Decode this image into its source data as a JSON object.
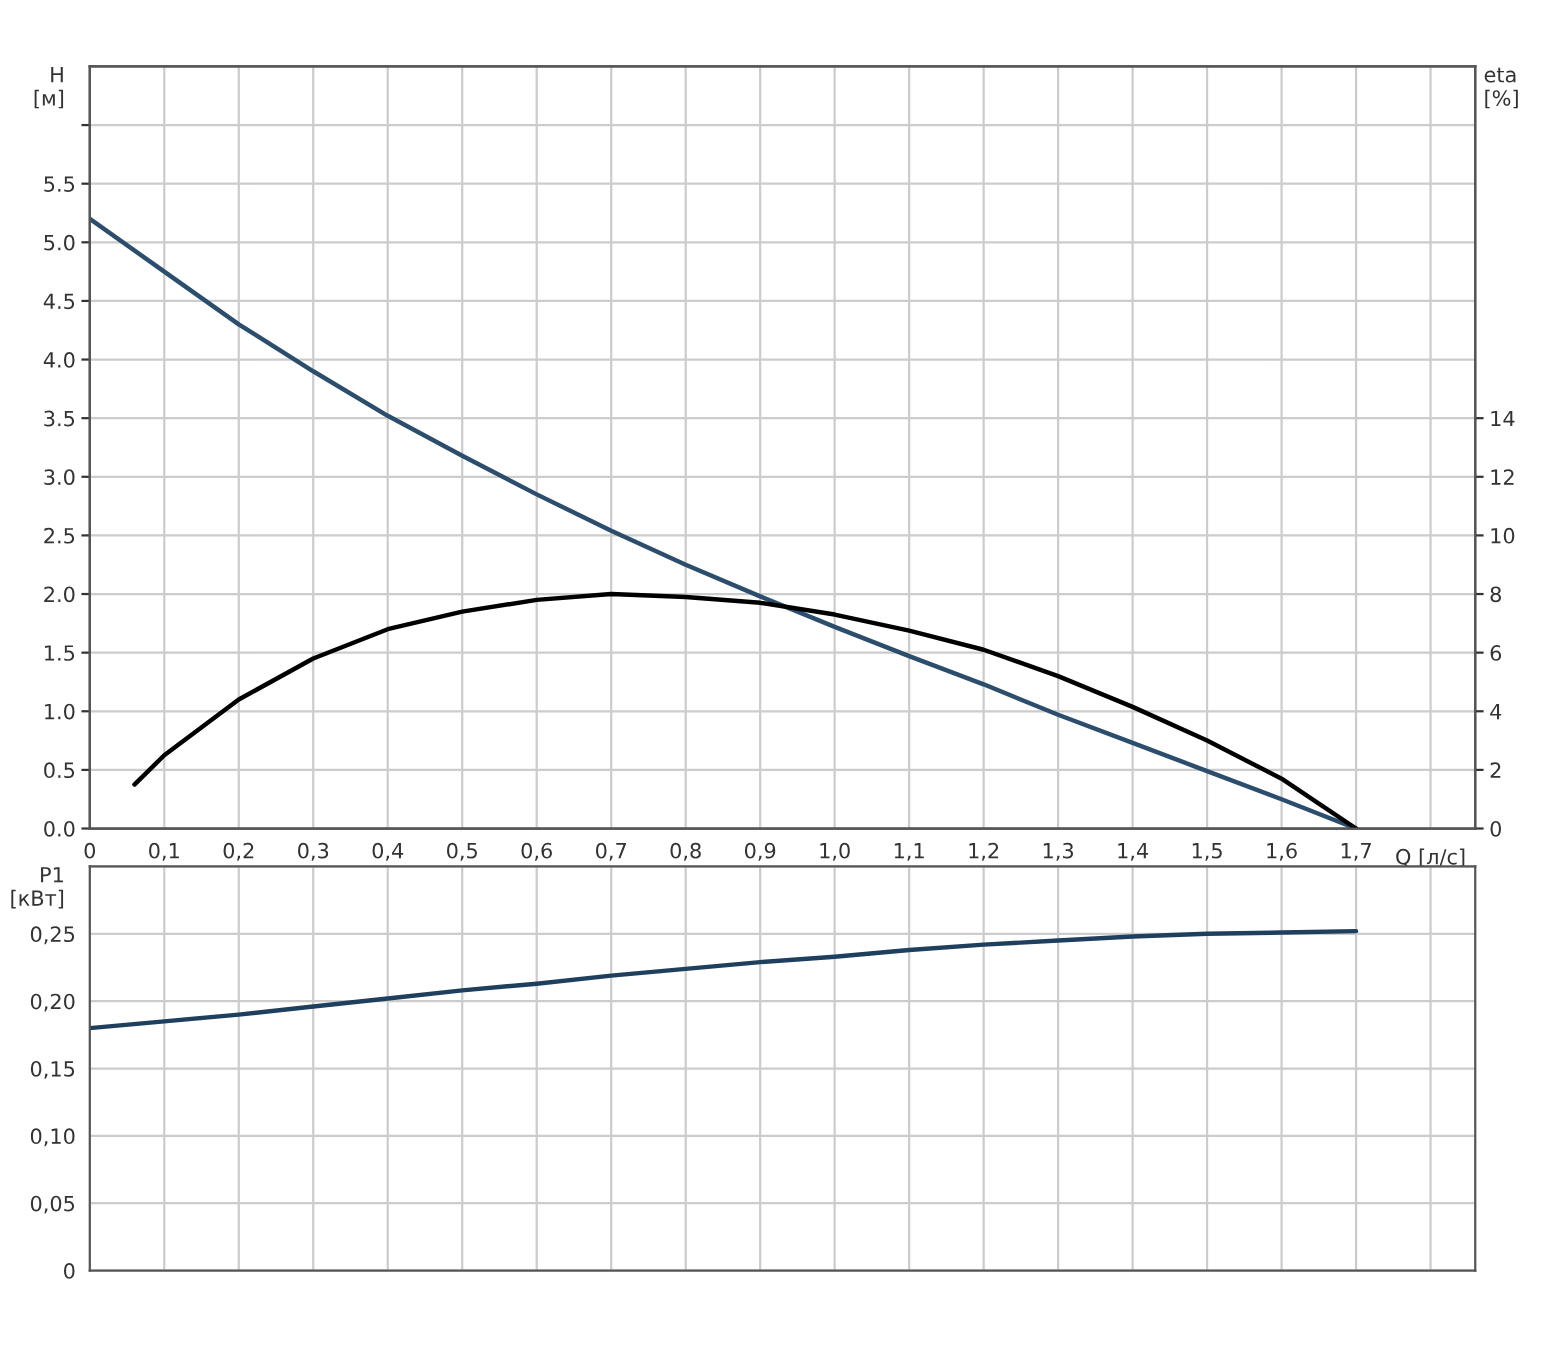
{
  "chart_data": [
    {
      "type": "line",
      "xlabel": "Q [л/с]",
      "ylabel": "H\n[м]",
      "y2label": "eta\n[%]",
      "grid": true,
      "xlim": [
        0,
        1.86
      ],
      "xticks": [
        0,
        {
          "value": 0.1,
          "label": "0,1"
        },
        {
          "value": 0.2,
          "label": "0,2"
        },
        {
          "value": 0.3,
          "label": "0,3"
        },
        {
          "value": 0.4,
          "label": "0,4"
        },
        {
          "value": 0.5,
          "label": "0,5"
        },
        {
          "value": 0.6,
          "label": "0,6"
        },
        {
          "value": 0.7,
          "label": "0,7"
        },
        {
          "value": 0.8,
          "label": "0,8"
        },
        {
          "value": 0.9,
          "label": "0,9"
        },
        {
          "value": 1.0,
          "label": "1,0"
        },
        {
          "value": 1.1,
          "label": "1,1"
        },
        {
          "value": 1.2,
          "label": "1,2"
        },
        {
          "value": 1.3,
          "label": "1,3"
        },
        {
          "value": 1.4,
          "label": "1,4"
        },
        {
          "value": 1.5,
          "label": "1,5"
        },
        {
          "value": 1.6,
          "label": "1,6"
        },
        {
          "value": 1.7,
          "label": "1,7"
        },
        {
          "value": 1.8,
          "label": null
        }
      ],
      "ylim": [
        0,
        6.5
      ],
      "yticks": [
        {
          "value": 0,
          "label": "0.0"
        },
        {
          "value": 0.5,
          "label": "0.5"
        },
        {
          "value": 1,
          "label": "1.0"
        },
        {
          "value": 1.5,
          "label": "1.5"
        },
        {
          "value": 2,
          "label": "2.0"
        },
        {
          "value": 2.5,
          "label": "2.5"
        },
        {
          "value": 3,
          "label": "3.0"
        },
        {
          "value": 3.5,
          "label": "3.5"
        },
        {
          "value": 4,
          "label": "4.0"
        },
        {
          "value": 4.5,
          "label": "4.5"
        },
        {
          "value": 5,
          "label": "5.0"
        },
        {
          "value": 5.5,
          "label": "5.5"
        },
        {
          "value": 6,
          "label": null
        }
      ],
      "y2lim": [
        0,
        26
      ],
      "y2ticks": [
        0,
        2,
        4,
        6,
        8,
        10,
        12,
        14
      ],
      "series": [
        {
          "color": "#2c4e6c",
          "x": [
            0,
            0.1,
            0.2,
            0.3,
            0.4,
            0.5,
            0.6,
            0.7,
            0.8,
            0.9,
            1.0,
            1.1,
            1.2,
            1.3,
            1.4,
            1.5,
            1.6,
            1.7
          ],
          "values": [
            5.2,
            4.75,
            4.3,
            3.9,
            3.52,
            3.18,
            2.85,
            2.54,
            2.25,
            1.98,
            1.72,
            1.47,
            1.23,
            0.97,
            0.73,
            0.49,
            0.25,
            0
          ]
        },
        {
          "color": "#000000",
          "axis": "y2",
          "x": [
            0.06,
            0.1,
            0.2,
            0.3,
            0.4,
            0.5,
            0.6,
            0.7,
            0.8,
            0.9,
            1.0,
            1.1,
            1.2,
            1.3,
            1.4,
            1.5,
            1.6,
            1.7
          ],
          "values": [
            1.5,
            2.5,
            4.4,
            5.8,
            6.8,
            7.4,
            7.8,
            8.0,
            7.9,
            7.7,
            7.3,
            6.75,
            6.1,
            5.2,
            4.15,
            3.0,
            1.7,
            0
          ]
        }
      ]
    },
    {
      "type": "line",
      "ylabel": "P1\n[кВт]",
      "grid": true,
      "tick_labels": "y",
      "xlim": [
        0,
        1.86
      ],
      "xticks": [
        0,
        0.1,
        0.2,
        0.3,
        0.4,
        0.5,
        0.6,
        0.7,
        0.8,
        0.9,
        1.0,
        1.1,
        1.2,
        1.3,
        1.4,
        1.5,
        1.6,
        1.7,
        1.8
      ],
      "ylim": [
        0,
        0.3
      ],
      "yticks": [
        0,
        {
          "value": 0.05,
          "label": "0,05"
        },
        {
          "value": 0.1,
          "label": "0,10"
        },
        {
          "value": 0.15,
          "label": "0,15"
        },
        {
          "value": 0.2,
          "label": "0,20"
        },
        {
          "value": 0.25,
          "label": "0,25"
        },
        {
          "value": 0.3,
          "label": null
        }
      ],
      "series": [
        {
          "color": "#1f3f5f",
          "x": [
            0,
            0.1,
            0.2,
            0.3,
            0.4,
            0.5,
            0.6,
            0.7,
            0.8,
            0.9,
            1.0,
            1.1,
            1.2,
            1.3,
            1.4,
            1.5,
            1.6,
            1.7
          ],
          "values": [
            0.18,
            0.185,
            0.19,
            0.196,
            0.202,
            0.208,
            0.213,
            0.219,
            0.224,
            0.229,
            0.233,
            0.238,
            0.242,
            0.245,
            0.248,
            0.25,
            0.251,
            0.252
          ]
        }
      ]
    }
  ]
}
